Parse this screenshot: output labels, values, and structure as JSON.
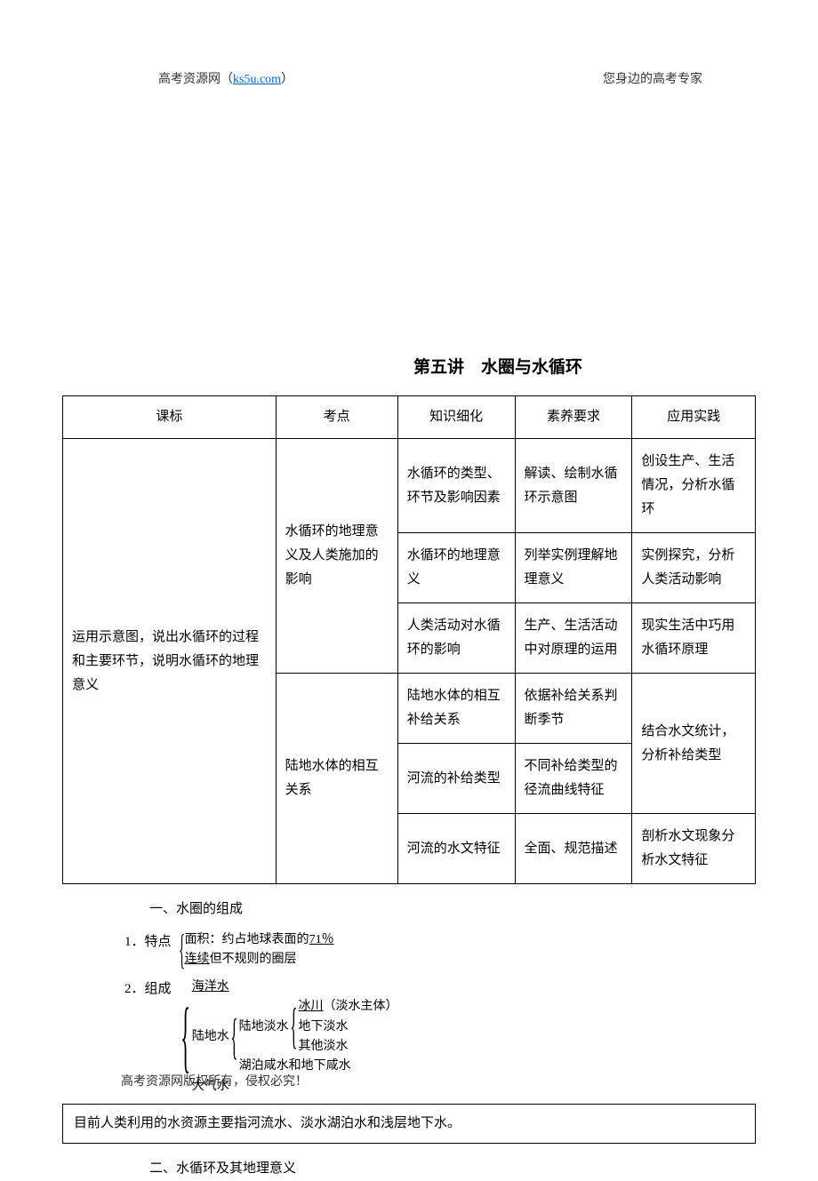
{
  "header": {
    "left_text": "高考资源网（",
    "left_link": "ks5u.com",
    "left_suffix": "）",
    "right_text": "您身边的高考专家"
  },
  "title": "第五讲　水圈与水循环",
  "table": {
    "headers": [
      "课标",
      "考点",
      "知识细化",
      "素养要求",
      "应用实践"
    ],
    "col0_rowspan": "运用示意图，说出水循环的过程和主要环节，说明水循环的地理意义",
    "col1_group1": "水循环的地理意义及人类施加的影响",
    "col1_group2": "陆地水体的相互关系",
    "rows": [
      {
        "c2": "水循环的类型、环节及影响因素",
        "c3": "解读、绘制水循环示意图",
        "c4": "创设生产、生活情况，分析水循环"
      },
      {
        "c2": "水循环的地理意义",
        "c3": "列举实例理解地理意义",
        "c4": "实例探究，分析人类活动影响"
      },
      {
        "c2": "人类活动对水循环的影响",
        "c3": "生产、生活活动中对原理的运用",
        "c4": "现实生活中巧用水循环原理"
      },
      {
        "c2": "陆地水体的相互补给关系",
        "c3": "依据补给关系判断季节",
        "c4": "结合水文统计，分析补给类型"
      },
      {
        "c2": "河流的补给类型",
        "c3": "不同补给类型的径流曲线特征",
        "c4": ""
      },
      {
        "c2": "河流的水文特征",
        "c3": "全面、规范描述",
        "c4": "剖析水文现象分析水文特征"
      }
    ]
  },
  "section1": {
    "heading": "一、水圈的组成",
    "item1_label": "1．特点",
    "item1_line1_prefix": "面积：约占地球表面的",
    "item1_line1_underline": "71％",
    "item1_line2_underline": "连续",
    "item1_line2_suffix": "但不规则的圈层",
    "item2_label": "2．组成",
    "ocean": "海洋水",
    "land": "陆地水",
    "atmos": "大气水",
    "land_fresh": "陆地淡水",
    "lake_salt": "湖泊咸水和地下咸水",
    "glacier": "冰川",
    "glacier_suffix": "（淡水主体）",
    "underground": "地下淡水",
    "other_fresh": "其他淡水",
    "note": "目前人类利用的水资源主要指河流水、淡水湖泊水和浅层地下水。"
  },
  "section2": {
    "heading": "二、水循环及其地理意义"
  },
  "footer": "高考资源网版权所有，侵权必究！"
}
